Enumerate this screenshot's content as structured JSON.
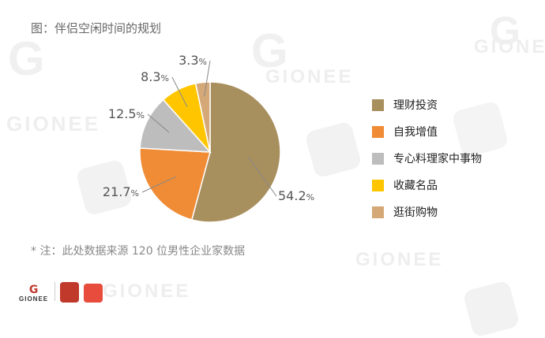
{
  "title": "图：伴侣空闲时间的规划",
  "footnote": "* 注：此处数据来源 120 位男性企业家数据",
  "chart_data": {
    "type": "pie",
    "title": "图：伴侣空闲时间的规划",
    "categories": [
      "理财投资",
      "自我增值",
      "专心料理家中事物",
      "收藏名品",
      "逛街购物"
    ],
    "values": [
      54.2,
      21.7,
      12.5,
      8.3,
      3.3
    ],
    "value_labels": [
      "54.2",
      "21.7",
      "12.5",
      "8.3",
      "3.3"
    ],
    "unit": "%",
    "colors": [
      "#a88f5e",
      "#f08c35",
      "#bdbdbd",
      "#ffc600",
      "#d5a878"
    ],
    "legend_position": "right",
    "start_angle_deg": 0,
    "direction": "clockwise"
  },
  "watermarks": {
    "brand_text": "GIONEE",
    "brand_mark": "G"
  },
  "logos": {
    "gionee_text": "GIONEE",
    "gionee_mark": "G"
  }
}
